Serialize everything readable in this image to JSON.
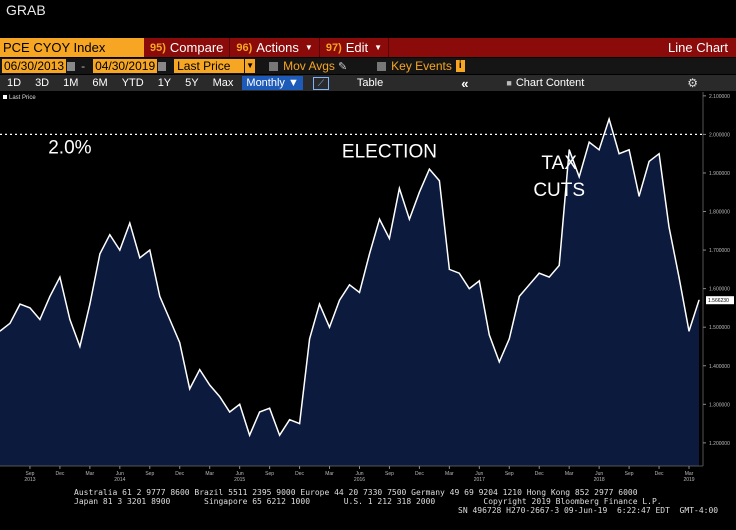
{
  "window": {
    "title": "GRAB"
  },
  "toolbar": {
    "ticker": "PCE CYOY Index",
    "compare_num": "95)",
    "compare_label": "Compare",
    "actions_num": "96)",
    "actions_label": "Actions",
    "edit_num": "97)",
    "edit_label": "Edit",
    "chart_type": "Line Chart"
  },
  "controls": {
    "start_date": "06/30/2013",
    "end_date": "04/30/2019",
    "dash": "-",
    "field": "Last Price",
    "mov_avgs": "Mov Avgs",
    "key_events": "Key Events",
    "info": "i"
  },
  "ranges": [
    "1D",
    "3D",
    "1M",
    "6M",
    "YTD",
    "1Y",
    "5Y",
    "Max"
  ],
  "period": "Monthly",
  "table_label": "Table",
  "chart_content_label": "Chart Content",
  "colors": {
    "accent": "#f6a623",
    "toolbar": "#8b0a0a",
    "fill": "#0b1a3d",
    "line": "#ffffff"
  },
  "chart_data": {
    "type": "area",
    "legend": "Last Price",
    "last_value_label": "1.566230",
    "ylim": [
      1.14,
      2.11
    ],
    "y_ticks": [
      {
        "value": 2.1,
        "label": "2.100000"
      },
      {
        "value": 2.0,
        "label": "2.000000"
      },
      {
        "value": 1.9,
        "label": "1.900000"
      },
      {
        "value": 1.8,
        "label": "1.800000"
      },
      {
        "value": 1.7,
        "label": "1.700000"
      },
      {
        "value": 1.6,
        "label": "1.600000"
      },
      {
        "value": 1.5,
        "label": "1.500000"
      },
      {
        "value": 1.4,
        "label": "1.400000"
      },
      {
        "value": 1.3,
        "label": "1.300000"
      },
      {
        "value": 1.2,
        "label": "1.200000"
      }
    ],
    "reference_line": 2.0,
    "x_ticks": [
      {
        "index": 3,
        "label": "Sep",
        "year": "2013"
      },
      {
        "index": 6,
        "label": "Dec"
      },
      {
        "index": 9,
        "label": "Mar"
      },
      {
        "index": 12,
        "label": "Jun",
        "year": "2014"
      },
      {
        "index": 15,
        "label": "Sep"
      },
      {
        "index": 18,
        "label": "Dec"
      },
      {
        "index": 21,
        "label": "Mar"
      },
      {
        "index": 24,
        "label": "Jun",
        "year": "2015"
      },
      {
        "index": 27,
        "label": "Sep"
      },
      {
        "index": 30,
        "label": "Dec"
      },
      {
        "index": 33,
        "label": "Mar"
      },
      {
        "index": 36,
        "label": "Jun",
        "year": "2016"
      },
      {
        "index": 39,
        "label": "Sep"
      },
      {
        "index": 42,
        "label": "Dec"
      },
      {
        "index": 45,
        "label": "Mar"
      },
      {
        "index": 48,
        "label": "Jun",
        "year": "2017"
      },
      {
        "index": 51,
        "label": "Sep"
      },
      {
        "index": 54,
        "label": "Dec"
      },
      {
        "index": 57,
        "label": "Mar"
      },
      {
        "index": 60,
        "label": "Jun",
        "year": "2018"
      },
      {
        "index": 63,
        "label": "Sep"
      },
      {
        "index": 66,
        "label": "Dec"
      },
      {
        "index": 69,
        "label": "Mar",
        "year": "2019"
      }
    ],
    "dates": [
      "Jun 2013",
      "Jul 2013",
      "Aug 2013",
      "Sep 2013",
      "Oct 2013",
      "Nov 2013",
      "Dec 2013",
      "Jan 2014",
      "Feb 2014",
      "Mar 2014",
      "Apr 2014",
      "May 2014",
      "Jun 2014",
      "Jul 2014",
      "Aug 2014",
      "Sep 2014",
      "Oct 2014",
      "Nov 2014",
      "Dec 2014",
      "Jan 2015",
      "Feb 2015",
      "Mar 2015",
      "Apr 2015",
      "May 2015",
      "Jun 2015",
      "Jul 2015",
      "Aug 2015",
      "Sep 2015",
      "Oct 2015",
      "Nov 2015",
      "Dec 2015",
      "Jan 2016",
      "Feb 2016",
      "Mar 2016",
      "Apr 2016",
      "May 2016",
      "Jun 2016",
      "Jul 2016",
      "Aug 2016",
      "Sep 2016",
      "Oct 2016",
      "Nov 2016",
      "Dec 2016",
      "Jan 2017",
      "Feb 2017",
      "Mar 2017",
      "Apr 2017",
      "May 2017",
      "Jun 2017",
      "Jul 2017",
      "Aug 2017",
      "Sep 2017",
      "Oct 2017",
      "Nov 2017",
      "Dec 2017",
      "Jan 2018",
      "Feb 2018",
      "Mar 2018",
      "Apr 2018",
      "May 2018",
      "Jun 2018",
      "Jul 2018",
      "Aug 2018",
      "Sep 2018",
      "Oct 2018",
      "Nov 2018",
      "Dec 2018",
      "Jan 2019",
      "Feb 2019",
      "Mar 2019",
      "Apr 2019"
    ],
    "values": [
      1.49,
      1.51,
      1.56,
      1.55,
      1.52,
      1.58,
      1.63,
      1.52,
      1.45,
      1.56,
      1.69,
      1.74,
      1.7,
      1.77,
      1.68,
      1.7,
      1.58,
      1.52,
      1.46,
      1.34,
      1.39,
      1.35,
      1.32,
      1.28,
      1.3,
      1.22,
      1.28,
      1.29,
      1.22,
      1.26,
      1.25,
      1.47,
      1.56,
      1.5,
      1.57,
      1.61,
      1.59,
      1.69,
      1.78,
      1.73,
      1.86,
      1.78,
      1.85,
      1.91,
      1.88,
      1.65,
      1.64,
      1.6,
      1.62,
      1.48,
      1.41,
      1.47,
      1.58,
      1.61,
      1.64,
      1.63,
      1.66,
      1.96,
      1.89,
      1.98,
      1.96,
      2.04,
      1.95,
      1.96,
      1.84,
      1.93,
      1.95,
      1.76,
      1.63,
      1.49,
      1.57
    ],
    "annotations": [
      {
        "text": "2.0%",
        "index": 7,
        "value": 1.95
      },
      {
        "text": "ELECTION",
        "index": 39,
        "value": 1.94
      },
      {
        "text": "TAX",
        "index": 56,
        "value": 1.91
      },
      {
        "text": "CUTS",
        "index": 56,
        "value": 1.84
      }
    ]
  },
  "footer": {
    "line1": "Australia 61 2 9777 8600 Brazil 5511 2395 9000 Europe 44 20 7330 7500 Germany 49 69 9204 1210 Hong Kong 852 2977 6000",
    "line2": "Japan 81 3 3201 8900       Singapore 65 6212 1000       U.S. 1 212 318 2000          Copyright 2019 Bloomberg Finance L.P.",
    "line3": "SN 496728 H270-2667-3 09-Jun-19  6:22:47 EDT  GMT-4:00"
  }
}
